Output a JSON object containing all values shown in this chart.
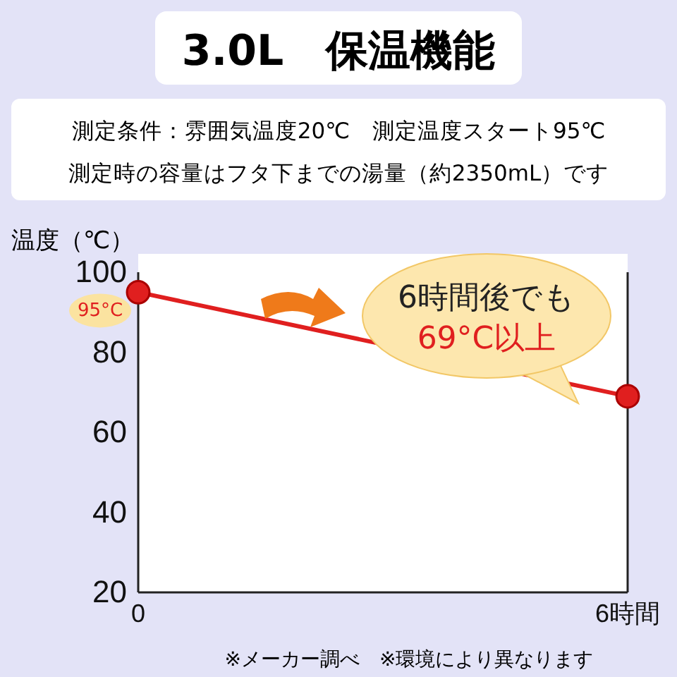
{
  "chart_data": {
    "type": "line",
    "title": "3.0L　保温機能",
    "subtitle": "測定条件：雰囲気温度20℃　測定温度スタート95℃\n測定時の容量はフタ下までの湯量（約2350mL）です",
    "ylabel": "温度（℃）",
    "x": [
      0,
      6
    ],
    "xlim": [
      0,
      6
    ],
    "xticks": [
      0,
      {
        "value": 6,
        "label": "6時間"
      }
    ],
    "ylim": [
      20,
      100
    ],
    "yticks": [
      20,
      40,
      60,
      80,
      100
    ],
    "series": [
      {
        "color": "#e01f1f",
        "values": [
          95,
          69
        ],
        "value_labels": [
          "95°C",
          null
        ]
      }
    ],
    "marker": "circle",
    "line_style": "solid",
    "grid": false,
    "annotations": [
      {
        "text": "6時間後でも\n69°C以上",
        "x": 6,
        "y": 69
      },
      "※メーカー調べ　※環境により異なります"
    ]
  }
}
